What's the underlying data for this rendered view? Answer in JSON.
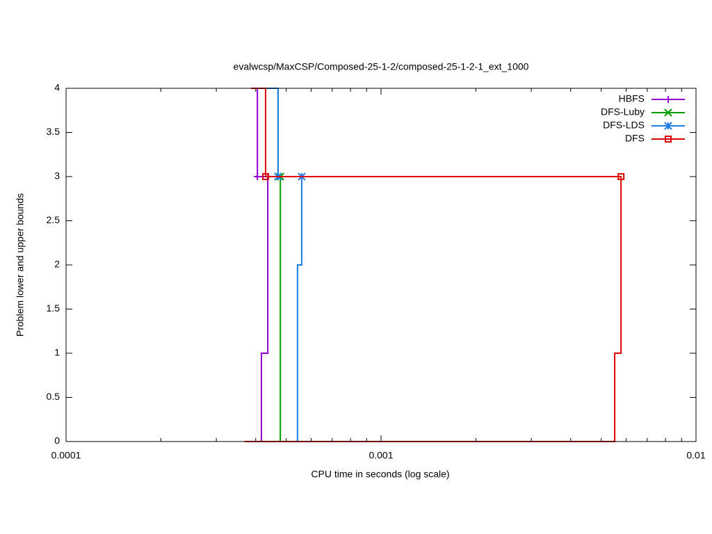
{
  "chart_data": {
    "type": "step",
    "title": "evalwcsp/MaxCSP/Composed-25-1-2/composed-25-1-2-1_ext_1000",
    "xlabel": "CPU time in seconds (log scale)",
    "ylabel": "Problem lower and upper bounds",
    "xscale": "log",
    "xlim": [
      0.0001,
      0.01
    ],
    "xticks": [
      0.0001,
      0.001,
      0.01
    ],
    "ylim": [
      0,
      4
    ],
    "yticks": [
      0,
      0.5,
      1,
      1.5,
      2,
      2.5,
      3,
      3.5,
      4
    ],
    "legend": "upper-right",
    "series": [
      {
        "name": "HBFS",
        "color": "#9400d3",
        "marker": "plus",
        "x": [
          0.000387,
          0.000405,
          0.000405,
          0.000437,
          0.000437,
          0.000417,
          0.000417,
          0.000369
        ],
        "values": [
          4,
          4,
          3,
          3,
          1,
          1,
          0,
          0
        ]
      },
      {
        "name": "DFS-Luby",
        "color": "#009e00",
        "marker": "cross",
        "x": [
          0.000471,
          0.000471,
          0.000479,
          0.000479,
          0.000369
        ],
        "values": [
          4,
          3,
          3,
          0,
          0
        ]
      },
      {
        "name": "DFS-LDS",
        "color": "#1e7ee6",
        "marker": "star",
        "x": [
          0.000387,
          0.000471,
          0.000471,
          0.00056,
          0.00056,
          0.000543,
          0.000543,
          0.000369
        ],
        "values": [
          4,
          4,
          3,
          3,
          2,
          2,
          0,
          0
        ]
      },
      {
        "name": "DFS",
        "color": "#e00000",
        "marker": "square",
        "x": [
          0.000387,
          0.00043,
          0.00043,
          0.00578,
          0.00578,
          0.00552,
          0.00552,
          0.000369
        ],
        "values": [
          4,
          4,
          3,
          3,
          1,
          1,
          0,
          0
        ]
      }
    ]
  }
}
